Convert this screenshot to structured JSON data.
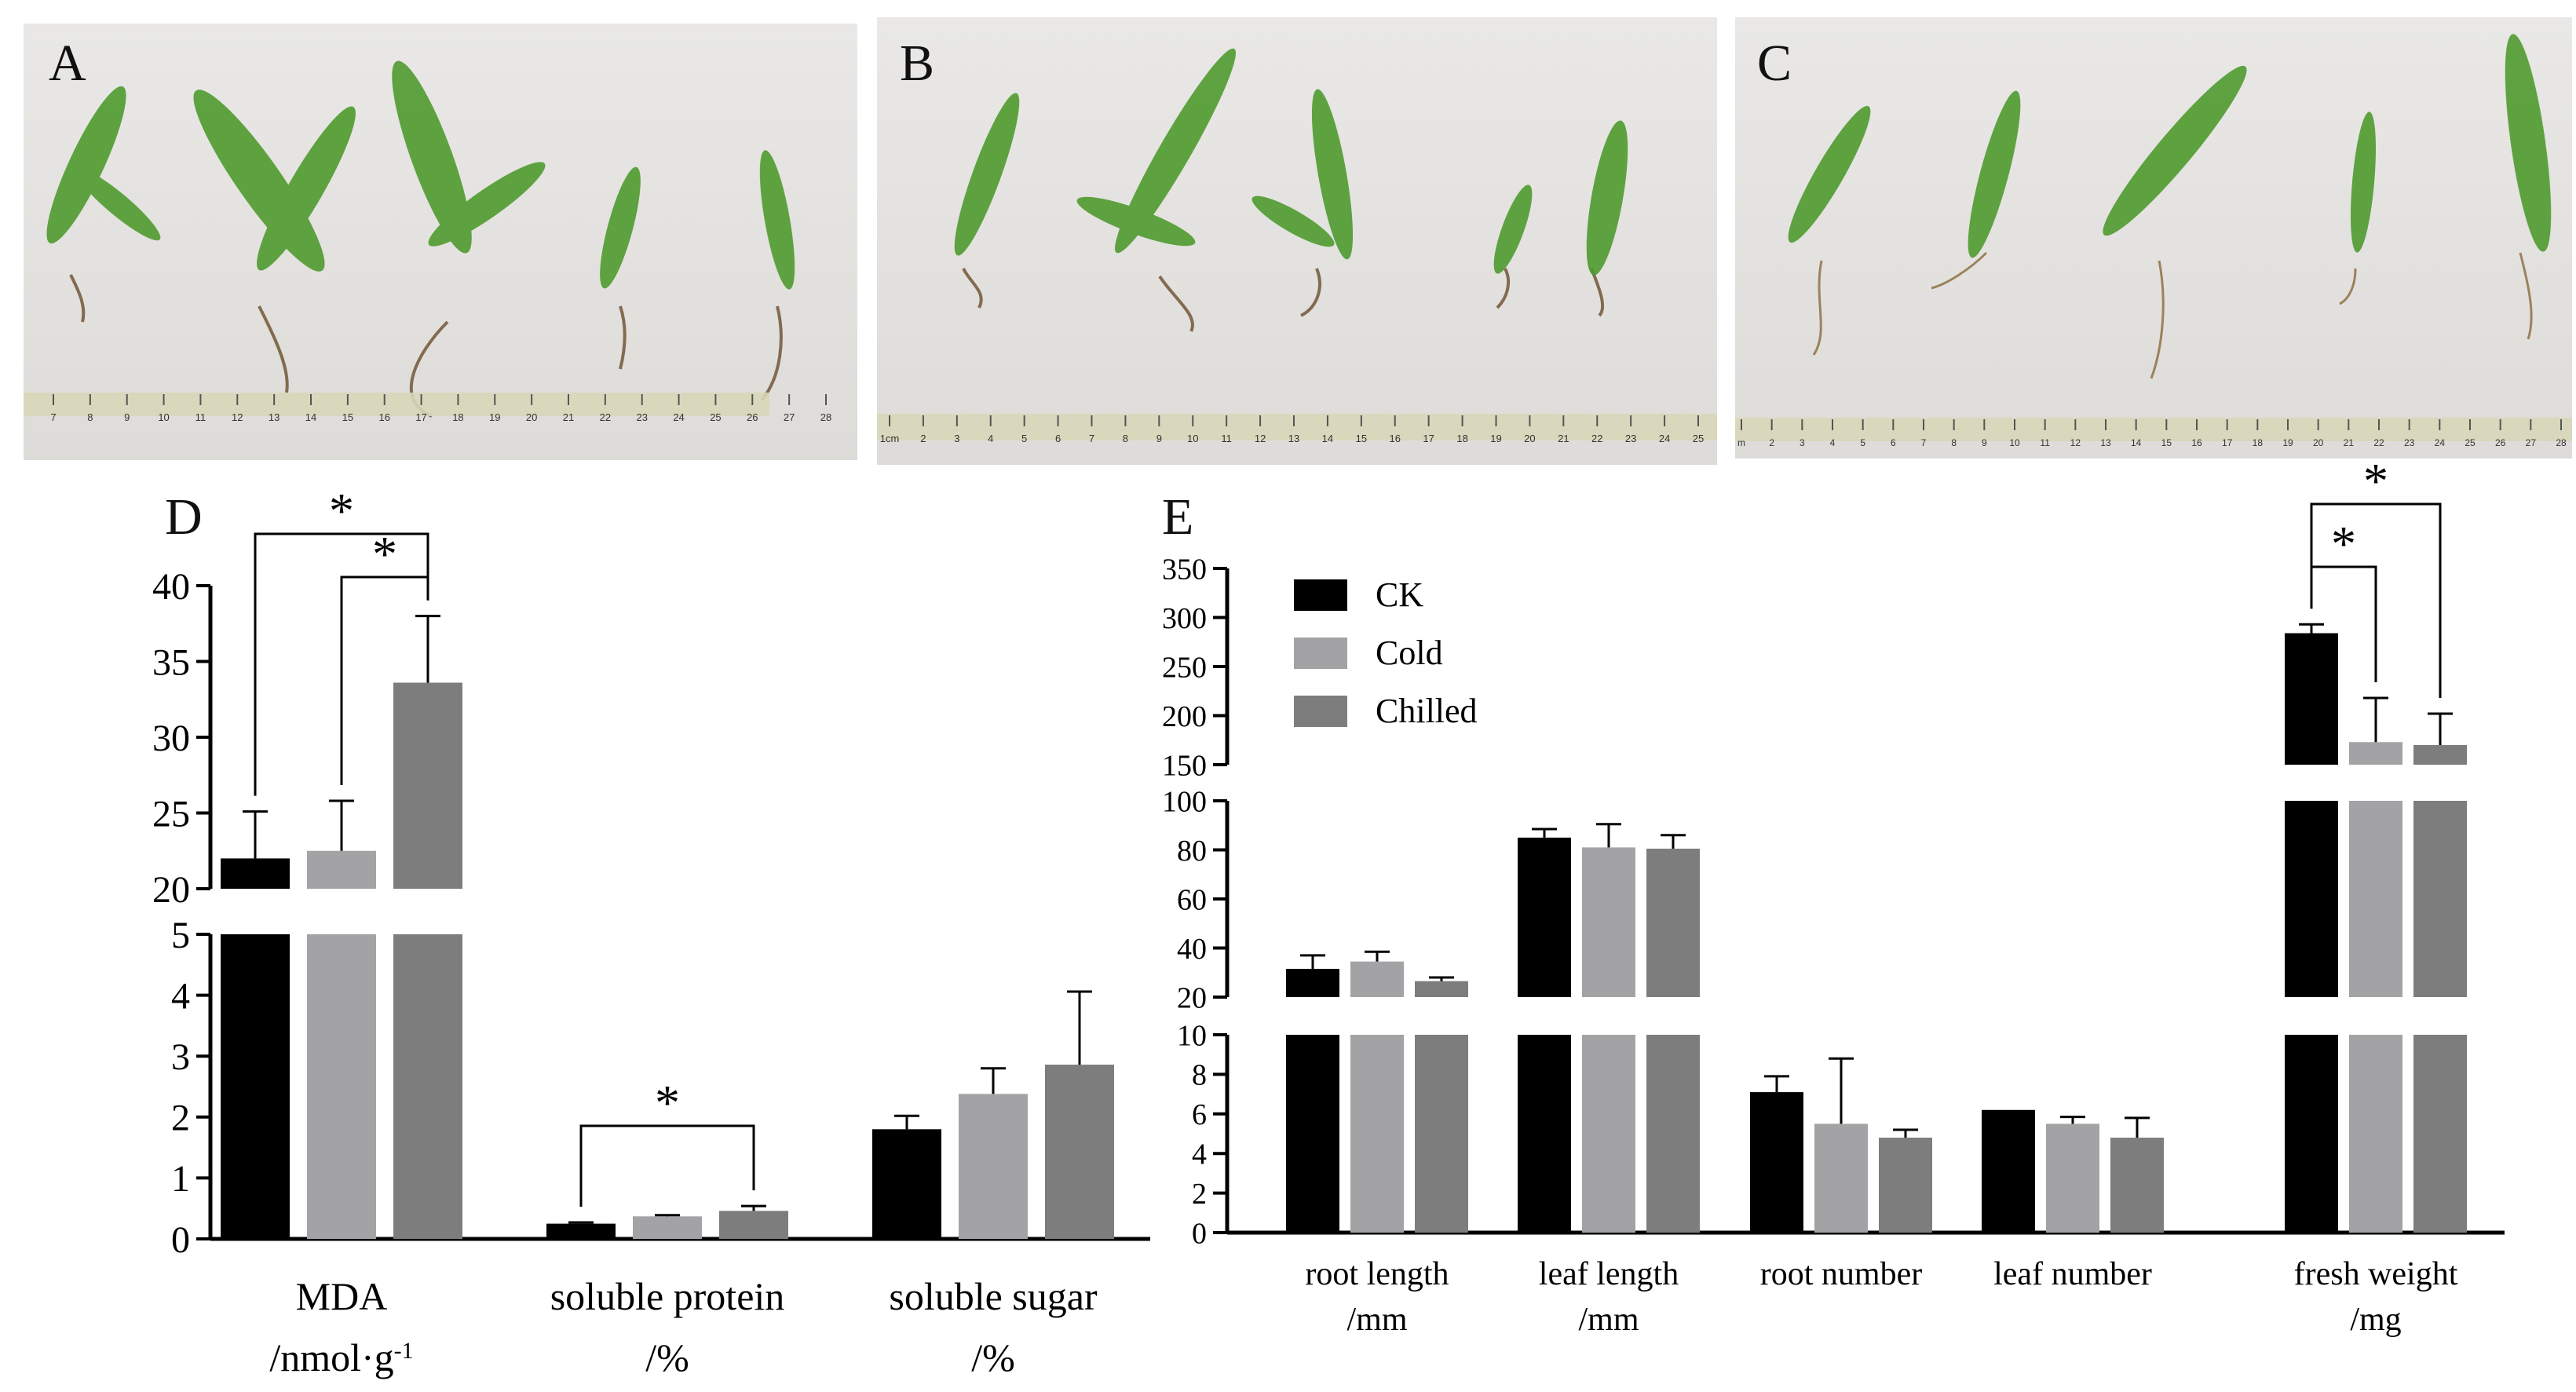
{
  "panels": {
    "a": "A",
    "b": "B",
    "c": "C",
    "d": "D",
    "e": "E"
  },
  "photos": {
    "ruler_a_ticks": [
      "7",
      "8",
      "9",
      "10",
      "11",
      "12",
      "13",
      "14",
      "15",
      "16",
      "17",
      "18",
      "19",
      "20",
      "21",
      "22",
      "23",
      "24",
      "25",
      "26",
      "27",
      "28"
    ],
    "ruler_b_ticks": [
      "1cm",
      "2",
      "3",
      "4",
      "5",
      "6",
      "7",
      "8",
      "9",
      "10",
      "11",
      "12",
      "13",
      "14",
      "15",
      "16",
      "17",
      "18",
      "19",
      "20",
      "21",
      "22",
      "23",
      "24",
      "25"
    ],
    "ruler_c_ticks": [
      "m",
      "2",
      "3",
      "4",
      "5",
      "6",
      "7",
      "8",
      "9",
      "10",
      "11",
      "12",
      "13",
      "14",
      "15",
      "16",
      "17",
      "18",
      "19",
      "20",
      "21",
      "22",
      "23",
      "24",
      "25",
      "26",
      "27",
      "28"
    ]
  },
  "colors": {
    "CK": "#000000",
    "Cold": "#a3a3a6",
    "Chilled": "#7d7d7d"
  },
  "chart_data": [
    {
      "type": "bar",
      "panel": "D",
      "categories": [
        "MDA\n/nmol·g-1",
        "soluble protein\n/%",
        "soluble sugar\n/%"
      ],
      "series": [
        {
          "name": "CK",
          "values": [
            22.0,
            0.25,
            1.8
          ],
          "errors": [
            3.1,
            0.02,
            0.22
          ]
        },
        {
          "name": "Cold",
          "values": [
            22.5,
            0.37,
            2.38
          ],
          "errors": [
            3.3,
            0.02,
            0.42
          ]
        },
        {
          "name": "Chilled",
          "values": [
            33.6,
            0.46,
            2.86
          ],
          "errors": [
            4.4,
            0.08,
            1.2
          ]
        }
      ],
      "axis_broken": true,
      "ylim_lower": [
        0,
        5
      ],
      "ylim_upper": [
        20,
        40
      ],
      "yticks_lower": [
        "0",
        "1",
        "2",
        "3",
        "4",
        "5"
      ],
      "yticks_upper": [
        "20",
        "25",
        "30",
        "35",
        "40"
      ],
      "significance": [
        {
          "category": 0,
          "from": "CK",
          "to": "Chilled",
          "label": "*"
        },
        {
          "category": 0,
          "from": "Cold",
          "to": "Chilled",
          "label": "*"
        },
        {
          "category": 1,
          "from": "CK",
          "to": "Chilled",
          "label": "*"
        }
      ]
    },
    {
      "type": "bar",
      "panel": "E",
      "categories": [
        "root length\n/mm",
        "leaf length\n/mm",
        "root number",
        "leaf number",
        "fresh weight\n/mg"
      ],
      "series": [
        {
          "name": "CK",
          "values": [
            31.5,
            85,
            7.1,
            6.2,
            284
          ],
          "errors": [
            5.5,
            3.5,
            0.8,
            0,
            9
          ]
        },
        {
          "name": "Cold",
          "values": [
            34.5,
            81,
            5.5,
            5.5,
            173
          ],
          "errors": [
            4,
            9.5,
            3.3,
            0.35,
            45
          ]
        },
        {
          "name": "Chilled",
          "values": [
            26.5,
            80.5,
            4.8,
            4.8,
            170
          ],
          "errors": [
            1.5,
            5.5,
            0.4,
            1,
            32
          ]
        }
      ],
      "axis_broken": true,
      "ylim_segments": [
        [
          0,
          10
        ],
        [
          20,
          100
        ],
        [
          150,
          350
        ]
      ],
      "yticks_segments": [
        [
          "0",
          "2",
          "4",
          "6",
          "8",
          "10"
        ],
        [
          "20",
          "40",
          "60",
          "80",
          "100"
        ],
        [
          "150",
          "200",
          "250",
          "300",
          "350"
        ]
      ],
      "legend": [
        "CK",
        "Cold",
        "Chilled"
      ],
      "legend_position": "top-left",
      "significance": [
        {
          "category": 4,
          "from": "CK",
          "to": "Cold",
          "label": "*"
        },
        {
          "category": 4,
          "from": "CK",
          "to": "Chilled",
          "label": "*"
        }
      ]
    }
  ]
}
